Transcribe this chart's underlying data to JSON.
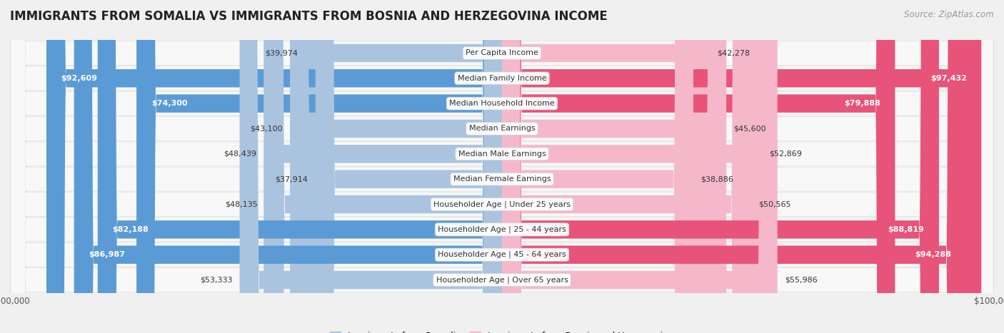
{
  "title": "IMMIGRANTS FROM SOMALIA VS IMMIGRANTS FROM BOSNIA AND HERZEGOVINA INCOME",
  "source": "Source: ZipAtlas.com",
  "categories": [
    "Per Capita Income",
    "Median Family Income",
    "Median Household Income",
    "Median Earnings",
    "Median Male Earnings",
    "Median Female Earnings",
    "Householder Age | Under 25 years",
    "Householder Age | 25 - 44 years",
    "Householder Age | 45 - 64 years",
    "Householder Age | Over 65 years"
  ],
  "somalia_values": [
    39974,
    92609,
    74300,
    43100,
    48439,
    37914,
    48135,
    82188,
    86987,
    53333
  ],
  "bosnia_values": [
    42278,
    97432,
    79888,
    45600,
    52869,
    38886,
    50565,
    88819,
    94288,
    55986
  ],
  "somalia_color_light": "#aac4e0",
  "somalia_color_dark": "#5b9bd5",
  "bosnia_color_light": "#f5b8cb",
  "bosnia_color_dark": "#e8537a",
  "row_bg_color": "#e8e8e8",
  "row_inner_color": "#f5f5f5",
  "background_color": "#f0f0f0",
  "max_value": 100000,
  "label_somalia": "Immigrants from Somalia",
  "label_bosnia": "Immigrants from Bosnia and Herzegovina",
  "title_fontsize": 12,
  "source_fontsize": 8.5,
  "bar_height": 0.72,
  "value_fontsize": 8,
  "category_fontsize": 8,
  "high_threshold": 65000
}
